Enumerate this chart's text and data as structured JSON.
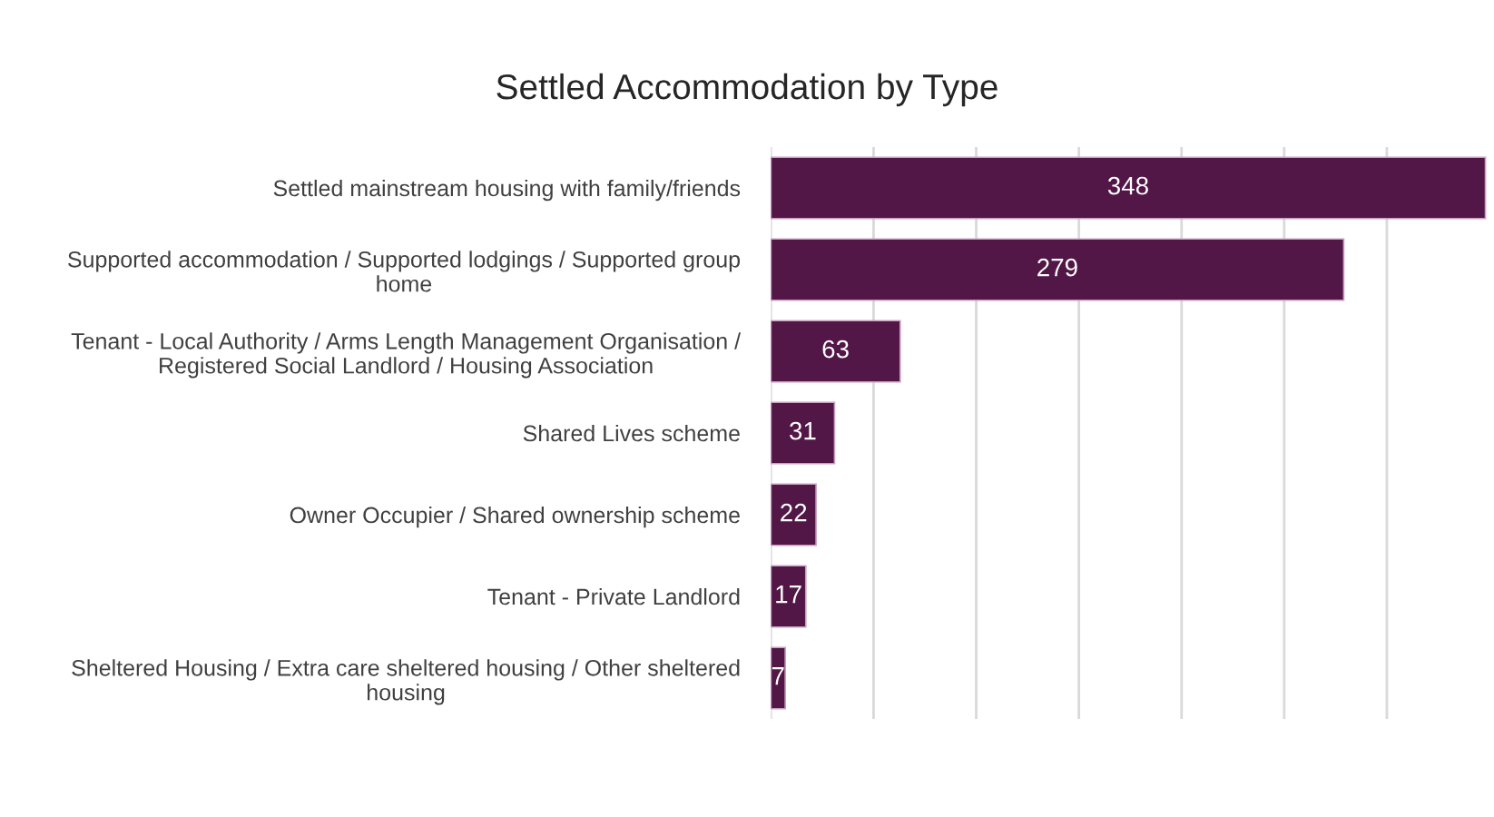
{
  "chart_data": {
    "type": "bar",
    "orientation": "horizontal",
    "title": "Settled Accommodation by Type",
    "categories": [
      "Settled mainstream housing with family/friends",
      "Supported accommodation / Supported lodgings / Supported group\nhome",
      "Tenant - Local Authority / Arms Length Management Organisation /\nRegistered Social Landlord / Housing Association",
      "Shared Lives scheme",
      "Owner Occupier / Shared ownership scheme",
      "Tenant - Private Landlord",
      "Sheltered Housing / Extra care sheltered housing / Other sheltered\nhousing"
    ],
    "values": [
      348,
      279,
      63,
      31,
      22,
      17,
      7
    ],
    "color": "#521747",
    "data_labels": true,
    "xlim": [
      0,
      350
    ],
    "xticks": [
      {
        "value": 0,
        "label": null
      },
      {
        "value": 50,
        "label": null
      },
      {
        "value": 100,
        "label": null
      },
      {
        "value": 150,
        "label": null
      },
      {
        "value": 200,
        "label": null
      },
      {
        "value": 250,
        "label": null
      },
      {
        "value": 300,
        "label": null
      }
    ],
    "tick_labels": "y",
    "grid": "x"
  }
}
